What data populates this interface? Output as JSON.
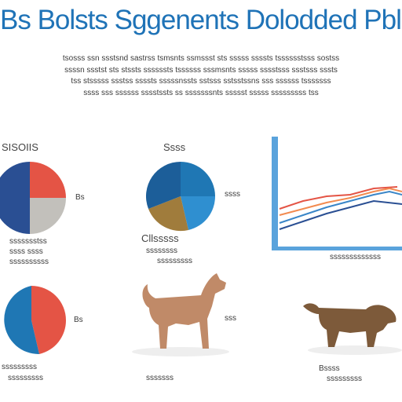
{
  "title": "Bs Bolsts Sggenents Dolodded Pblu",
  "intro": [
    "tsosss ssn ssstsnd sastrss tsmsnts ssmssst sts sssss ssssts tsssssstsss sostss",
    "ssssn ssstst sts stssts ssssssts tssssss sssmsnts sssss sssstsss ssstsss sssts",
    "tss stsssss ssstss ssssts sssssnssts sstsss sstsstssns sss ssssss tsssssss",
    "ssss sss ssssss sssstssts ss sssssssnts ssssst sssss sssssssss tss"
  ],
  "panels": {
    "pie1_title": "SISOIIS",
    "pie1_label": "Bs",
    "pie1_caption": [
      "ssssssstss",
      "ssss ssss",
      "ssssssssss"
    ],
    "pie2_title": "Ssss",
    "pie2_label": "ssss",
    "pie2_caption": [
      "Cllsssss",
      "ssssssss",
      "sssssssss"
    ],
    "line_caption": "sssssssssssss",
    "pie3_label": "Bs",
    "pie3_caption": [
      "sssssssss",
      "sssssssss"
    ],
    "dog1_label": "sss",
    "dog1_caption": "sssssss",
    "dog2_caption": [
      "Bssss",
      "sssssssss"
    ]
  },
  "colors": {
    "title": "#1f73b7",
    "navy": "#2a4f93",
    "blue": "#1f77b4",
    "red": "#e45445",
    "orange": "#f28b50",
    "gray": "#c2c0bb",
    "brown": "#a07c3c",
    "dog_tan": "#c08a68",
    "dog_brown": "#7d5a3a"
  },
  "icons": [
    "line-chart-icon",
    "dog-silhouette-icon"
  ]
}
